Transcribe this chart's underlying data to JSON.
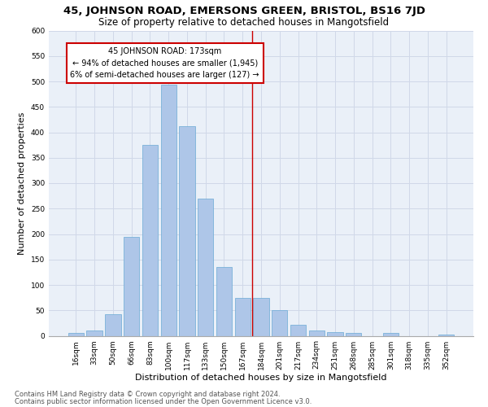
{
  "title": "45, JOHNSON ROAD, EMERSONS GREEN, BRISTOL, BS16 7JD",
  "subtitle": "Size of property relative to detached houses in Mangotsfield",
  "xlabel": "Distribution of detached houses by size in Mangotsfield",
  "ylabel": "Number of detached properties",
  "categories": [
    "16sqm",
    "33sqm",
    "50sqm",
    "66sqm",
    "83sqm",
    "100sqm",
    "117sqm",
    "133sqm",
    "150sqm",
    "167sqm",
    "184sqm",
    "201sqm",
    "217sqm",
    "234sqm",
    "251sqm",
    "268sqm",
    "285sqm",
    "301sqm",
    "318sqm",
    "335sqm",
    "352sqm"
  ],
  "values": [
    5,
    10,
    42,
    195,
    375,
    493,
    412,
    270,
    135,
    75,
    75,
    50,
    22,
    10,
    8,
    5,
    0,
    5,
    0,
    0,
    3
  ],
  "bar_color": "#aec6e8",
  "bar_edge_color": "#6aaad4",
  "property_line_x": 9.5,
  "annotation_title": "45 JOHNSON ROAD: 173sqm",
  "annotation_line1": "← 94% of detached houses are smaller (1,945)",
  "annotation_line2": "6% of semi-detached houses are larger (127) →",
  "annotation_box_color": "#ffffff",
  "annotation_box_edge": "#cc0000",
  "vline_color": "#cc0000",
  "grid_color": "#d0d8e8",
  "background_color": "#eaf0f8",
  "ylim": [
    0,
    600
  ],
  "yticks": [
    0,
    50,
    100,
    150,
    200,
    250,
    300,
    350,
    400,
    450,
    500,
    550,
    600
  ],
  "footer_line1": "Contains HM Land Registry data © Crown copyright and database right 2024.",
  "footer_line2": "Contains public sector information licensed under the Open Government Licence v3.0.",
  "title_fontsize": 9.5,
  "subtitle_fontsize": 8.5,
  "xlabel_fontsize": 8,
  "ylabel_fontsize": 8,
  "tick_fontsize": 6.5,
  "annotation_fontsize": 7,
  "footer_fontsize": 6
}
